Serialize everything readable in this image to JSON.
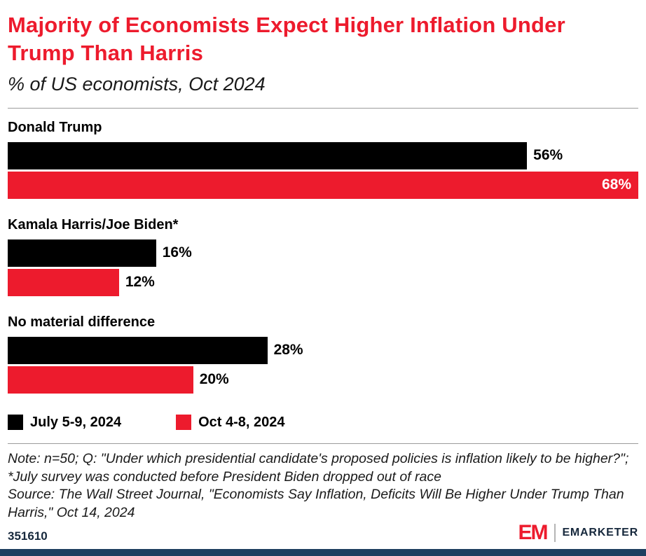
{
  "header": {
    "title": "Majority of Economists Expect Higher Inflation Under Trump Than Harris",
    "subtitle": "% of US economists, Oct 2024"
  },
  "chart_data": {
    "type": "bar",
    "orientation": "horizontal",
    "title": "Majority of Economists Expect Higher Inflation Under Trump Than Harris",
    "subtitle": "% of US economists, Oct 2024",
    "categories": [
      "Donald Trump",
      "Kamala Harris/Joe Biden*",
      "No material difference"
    ],
    "series": [
      {
        "name": "July 5-9, 2024",
        "color": "#000000",
        "values": [
          56,
          16,
          28
        ]
      },
      {
        "name": "Oct 4-8, 2024",
        "color": "#ed1b2d",
        "values": [
          68,
          12,
          20
        ]
      }
    ],
    "value_suffix": "%",
    "xlim": [
      0,
      68
    ],
    "grid": false,
    "legend_position": "bottom"
  },
  "footer": {
    "note": "Note: n=50; Q: \"Under which presidential candidate's proposed policies is inflation likely to be higher?\"; *July survey was conducted before President Biden dropped out of race",
    "source": "Source: The Wall Street Journal, \"Economists Say Inflation, Deficits Will Be Higher Under Trump Than Harris,\" Oct 14, 2024",
    "chart_id": "351610",
    "brand_short": "EM",
    "brand_name": "EMARKETER"
  },
  "colors": {
    "accent_red": "#ed1b2d",
    "bar_black": "#000000",
    "footer_navy": "#1e3e5f"
  }
}
